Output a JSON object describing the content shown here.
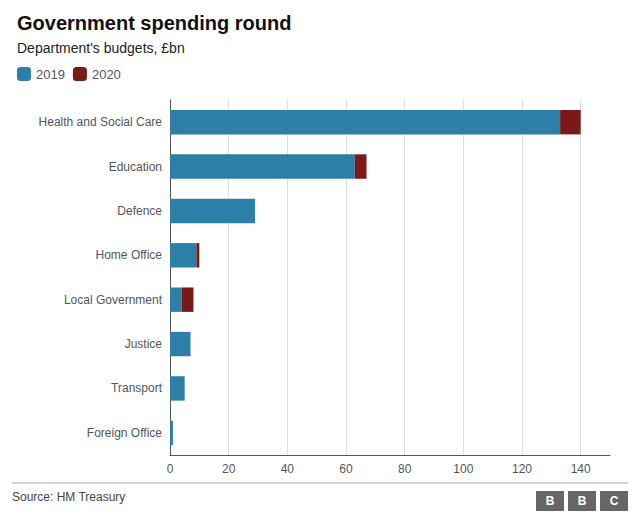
{
  "chart_data": {
    "type": "bar",
    "title": "Government spending round",
    "subtitle": "Department's budgets, £bn",
    "source": "Source: HM Treasury",
    "annotations": [
      "B",
      "B",
      "C"
    ],
    "orientation": "horizontal",
    "stacked": true,
    "grid": true,
    "legend": "top-left",
    "categories": [
      "Health and Social Care",
      "Education",
      "Defence",
      "Home Office",
      "Local Government",
      "Justice",
      "Transport",
      "Foreign Office"
    ],
    "series": [
      {
        "name": "2019",
        "color": "#2e7fa8",
        "values": [
          133,
          63,
          29,
          9,
          4,
          7,
          5,
          1
        ]
      },
      {
        "name": "2020",
        "color": "#7b1818",
        "values": [
          7,
          4,
          0,
          1,
          4,
          0,
          0,
          0
        ]
      }
    ],
    "xlim": [
      0,
      150
    ],
    "xticks": [
      0,
      20,
      40,
      60,
      80,
      100,
      120,
      140
    ]
  }
}
